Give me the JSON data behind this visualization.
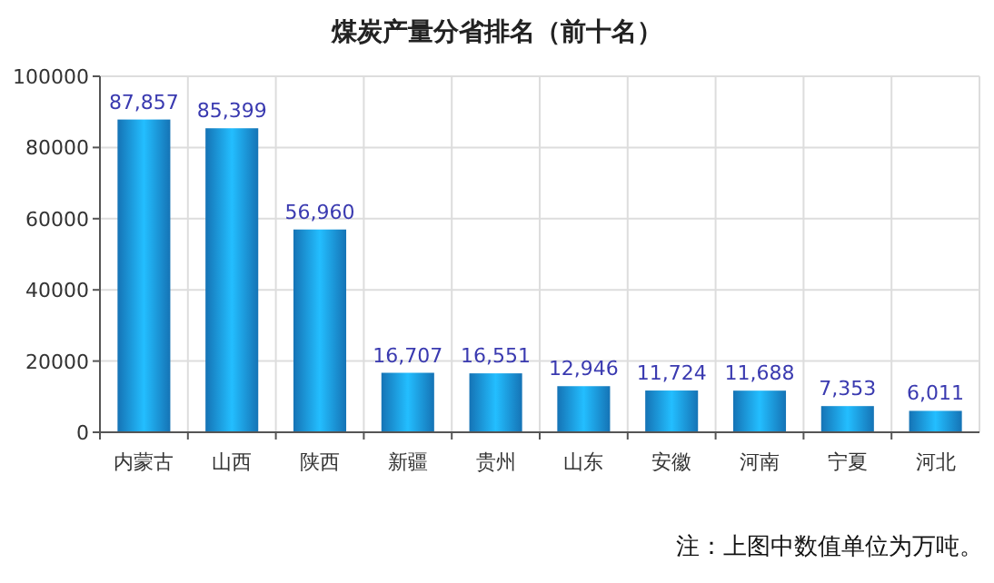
{
  "chart_data": {
    "type": "bar",
    "title": "煤炭产量分省排名（前十名）",
    "categories": [
      "内蒙古",
      "山西",
      "陕西",
      "新疆",
      "贵州",
      "山东",
      "安徽",
      "河南",
      "宁夏",
      "河北"
    ],
    "values": [
      87857,
      85399,
      56960,
      16707,
      16551,
      12946,
      11724,
      11688,
      7353,
      6011
    ],
    "value_labels": [
      "87,857",
      "85,399",
      "56,960",
      "16,707",
      "16,551",
      "12,946",
      "11,724",
      "11,688",
      "7,353",
      "6,011"
    ],
    "color": "#1a8fe0",
    "ylim": [
      0,
      100000
    ],
    "yticks": [
      0,
      20000,
      40000,
      60000,
      80000,
      100000
    ],
    "grid": true,
    "annotations": [
      "注：上图中数值单位为万吨。"
    ]
  }
}
